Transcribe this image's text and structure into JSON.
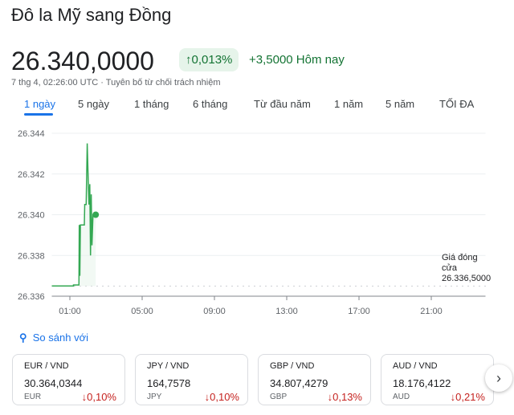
{
  "title": "Đô la Mỹ sang Đồng",
  "price": "26.340,0000",
  "change_pct": "0,013%",
  "change_abs": "+3,5000 Hôm nay",
  "subtitle": "7 thg 4, 02:26:00 UTC · Tuyên bố từ chối trách nhiệm",
  "tabs": [
    "1 ngày",
    "5 ngày",
    "1 tháng",
    "6 tháng",
    "Từ đầu năm",
    "1 năm",
    "5 năm",
    "TỐI ĐA"
  ],
  "active_tab": "1 ngày",
  "compare_label": "So sánh với",
  "colors": {
    "up": "#137333",
    "down": "#c5221f",
    "line": "#34a853",
    "accent": "#1a73e8"
  },
  "chart_data": {
    "type": "line",
    "x_unit": "hour of day (UTC)",
    "xlim": [
      0,
      24
    ],
    "ylim": [
      26.336,
      26.344
    ],
    "yticks": [
      "26.344",
      "26.342",
      "26.340",
      "26.338",
      "26.336"
    ],
    "ytick_values": [
      26.344,
      26.342,
      26.34,
      26.338,
      26.336
    ],
    "xticks": [
      "01:00",
      "05:00",
      "09:00",
      "13:00",
      "17:00",
      "21:00"
    ],
    "xtick_values": [
      1,
      5,
      9,
      13,
      17,
      21
    ],
    "grid": true,
    "previous_close": {
      "label": "Giá đóng cửa",
      "value_text": "26.336,5000",
      "value": 26.3365
    },
    "points": [
      [
        0,
        26.3365
      ],
      [
        1.2,
        26.3365
      ],
      [
        1.2,
        26.33655
      ],
      [
        1.5,
        26.33655
      ],
      [
        1.52,
        26.3395
      ],
      [
        1.55,
        26.337
      ],
      [
        1.58,
        26.3395
      ],
      [
        1.8,
        26.3395
      ],
      [
        1.82,
        26.3405
      ],
      [
        1.9,
        26.3405
      ],
      [
        1.96,
        26.3435
      ],
      [
        2.02,
        26.3415
      ],
      [
        2.06,
        26.3405
      ],
      [
        2.1,
        26.3415
      ],
      [
        2.14,
        26.338
      ],
      [
        2.18,
        26.341
      ],
      [
        2.22,
        26.3385
      ],
      [
        2.28,
        26.34
      ],
      [
        2.43,
        26.34
      ]
    ]
  },
  "cards": [
    {
      "pair": "EUR / VND",
      "value": "30.364,0344",
      "currency": "EUR",
      "change": "0,10%"
    },
    {
      "pair": "JPY / VND",
      "value": "164,7578",
      "currency": "JPY",
      "change": "0,10%"
    },
    {
      "pair": "GBP / VND",
      "value": "34.807,4279",
      "currency": "GBP",
      "change": "0,13%"
    },
    {
      "pair": "AUD / VND",
      "value": "18.176,4122",
      "currency": "AUD",
      "change": "0,21%"
    }
  ]
}
